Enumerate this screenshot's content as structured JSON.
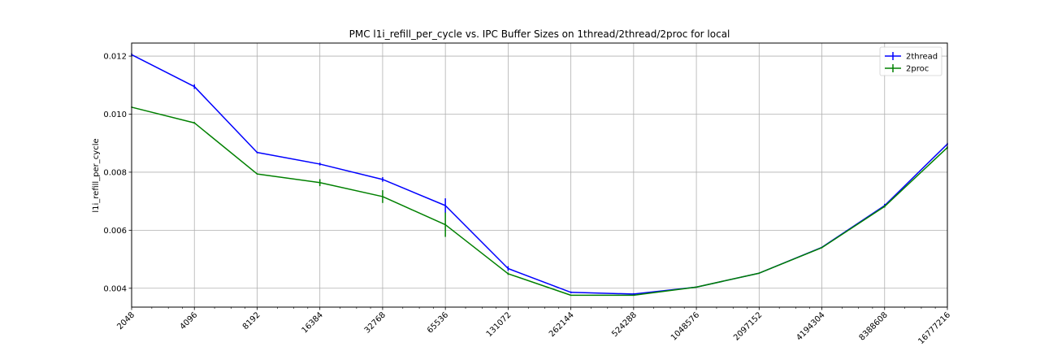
{
  "chart_data": {
    "type": "line",
    "title": "PMC l1i_refill_per_cycle vs. IPC Buffer Sizes on 1thread/2thread/2proc for local",
    "xlabel": "",
    "ylabel": "l1i_refill_per_cycle",
    "x_scale": "log2",
    "x": [
      2048,
      4096,
      8192,
      16384,
      32768,
      65536,
      131072,
      262144,
      524288,
      1048576,
      2097152,
      4194304,
      8388608,
      16777216
    ],
    "x_tick_labels": [
      "2048",
      "4096",
      "8192",
      "16384",
      "32768",
      "65536",
      "131072",
      "262144",
      "524288",
      "1048576",
      "2097152",
      "4194304",
      "8388608",
      "16777216"
    ],
    "ylim": [
      0.00335,
      0.01245
    ],
    "y_ticks": [
      0.004,
      0.006,
      0.008,
      0.01,
      0.012
    ],
    "y_tick_labels": [
      "0.004",
      "0.006",
      "0.008",
      "0.010",
      "0.012"
    ],
    "grid": true,
    "legend_position": "top-right",
    "series": [
      {
        "name": "2thread",
        "color": "#0000ff",
        "values": [
          0.01205,
          0.01095,
          0.00868,
          0.00828,
          0.00775,
          0.00685,
          0.00468,
          0.00386,
          0.0038,
          0.00404,
          0.00452,
          0.00541,
          0.00685,
          0.00897
        ],
        "errors": [
          5e-05,
          8e-05,
          3e-05,
          5e-05,
          8e-05,
          0.00025,
          8e-05,
          3e-05,
          3e-05,
          2e-05,
          2e-05,
          2e-05,
          6e-05,
          4e-05
        ]
      },
      {
        "name": "2proc",
        "color": "#008000",
        "values": [
          0.01024,
          0.0097,
          0.00794,
          0.00764,
          0.00716,
          0.00619,
          0.0045,
          0.00376,
          0.00376,
          0.00404,
          0.00452,
          0.0054,
          0.00682,
          0.00885
        ],
        "errors": [
          2e-05,
          3e-05,
          2e-05,
          0.00012,
          0.00022,
          0.00042,
          4e-05,
          2e-05,
          2e-05,
          2e-05,
          2e-05,
          2e-05,
          4e-05,
          4e-05
        ]
      }
    ]
  }
}
